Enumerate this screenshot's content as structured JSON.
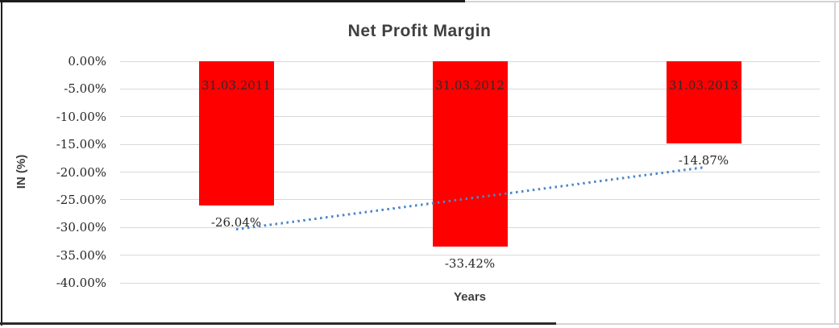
{
  "window": {
    "frame_note": "cropped screenshot with dark and light border lines"
  },
  "colors": {
    "bar": "#ff0000",
    "trendline": "#4a86c8",
    "gridline": "#d9d9d9",
    "title_text": "#3f3f3f",
    "axis_text": "#262626",
    "bar_label_text": "#2b2b2b",
    "frame_dark": "#1c1c1c",
    "frame_light": "#d4d4d4"
  },
  "chart_data": {
    "type": "bar",
    "title": "Net Profit Margin",
    "xlabel": "Years",
    "ylabel": "IN (%)",
    "categories": [
      "31.03.2011",
      "31.03.2012",
      "31.03.2013"
    ],
    "values": [
      -26.04,
      -33.42,
      -14.87
    ],
    "value_labels": [
      "-26.04%",
      "-33.42%",
      "-14.87%"
    ],
    "y_ticks": [
      "0.00%",
      "-5.00%",
      "-10.00%",
      "-15.00%",
      "-20.00%",
      "-25.00%",
      "-30.00%",
      "-35.00%",
      "-40.00%"
    ],
    "y_tick_values": [
      0,
      -5,
      -10,
      -15,
      -20,
      -25,
      -30,
      -35,
      -40
    ],
    "ylim": [
      -40,
      0
    ],
    "grid": true,
    "legend": false,
    "bar_label_position": "inside-end",
    "value_label_position": "outside-end",
    "trendline": {
      "style": "dotted",
      "kind": "linear",
      "start_value": -30.36,
      "end_value": -19.19
    }
  }
}
